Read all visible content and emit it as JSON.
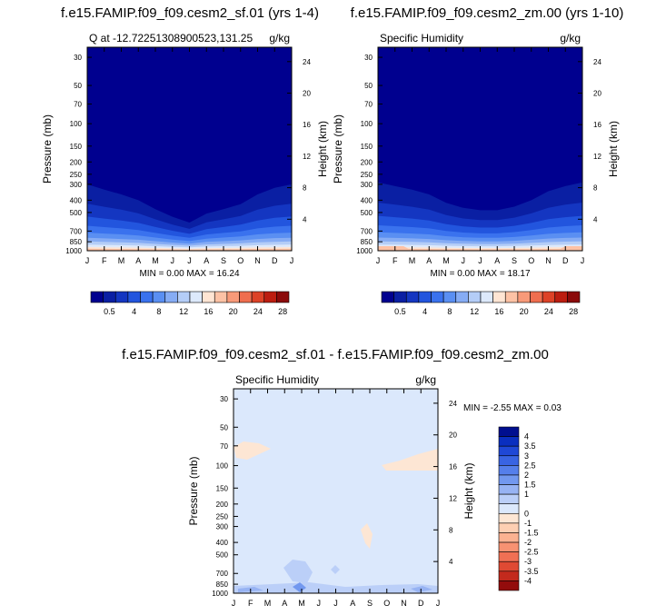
{
  "colors": {
    "abs_palette": [
      "#00008f",
      "#0a1fa3",
      "#1436c1",
      "#2255de",
      "#3a72ee",
      "#5a8ff2",
      "#86acf4",
      "#b4cdf7",
      "#dde9fb",
      "#ffe5d3",
      "#fdc2a5",
      "#f89a79",
      "#ef6e4f",
      "#dd4227",
      "#bc1d10",
      "#8b0a0a"
    ],
    "diff_palette": [
      "#000f8f",
      "#0a2fbf",
      "#1f48d6",
      "#3964e3",
      "#557feb",
      "#7298ef",
      "#97b3f3",
      "#bbcff8",
      "#dbe8fc",
      "#fde6d4",
      "#fdcfb3",
      "#fbb291",
      "#f79272",
      "#f07054",
      "#df4a33",
      "#c32a1d",
      "#930c0c"
    ]
  },
  "chart_data": [
    {
      "type": "contour",
      "title": "f.e15.FAMIP.f09_f09.cesm2_sf.01 (yrs 1-4)",
      "left_string": "Q at -12.72251308900523,131.25",
      "right_string": "g/kg",
      "xlabel": "",
      "ylabel": "Pressure (mb)",
      "ylabel_right": "Height (km)",
      "x_ticks": [
        "J",
        "F",
        "M",
        "A",
        "M",
        "J",
        "J",
        "A",
        "S",
        "O",
        "N",
        "D",
        "J"
      ],
      "y_ticks_mb": [
        30,
        50,
        70,
        100,
        150,
        200,
        250,
        300,
        400,
        500,
        700,
        850,
        1000
      ],
      "y_ticks_km": [
        24,
        20,
        16,
        12,
        8,
        4
      ],
      "ylim_mb": [
        1000,
        25
      ],
      "y_scale": "log",
      "min_max_text": "MIN =   0.00  MAX =  16.24",
      "min": 0.0,
      "max": 16.24,
      "boundary_0_5_mb": [
        300,
        330,
        360,
        400,
        470,
        540,
        600,
        510,
        470,
        430,
        360,
        320,
        300
      ]
    },
    {
      "type": "contour",
      "title": "f.e15.FAMIP.f09_f09.cesm2_zm.00 (yrs 1-10)",
      "left_string": "Specific Humidity",
      "right_string": "g/kg",
      "xlabel": "",
      "ylabel": "Pressure (mb)",
      "ylabel_right": "Height (km)",
      "x_ticks": [
        "J",
        "F",
        "M",
        "A",
        "M",
        "J",
        "J",
        "A",
        "S",
        "O",
        "N",
        "D",
        "J"
      ],
      "y_ticks_mb": [
        30,
        50,
        70,
        100,
        150,
        200,
        250,
        300,
        400,
        500,
        700,
        850,
        1000
      ],
      "y_ticks_km": [
        24,
        20,
        16,
        12,
        8,
        4
      ],
      "ylim_mb": [
        1000,
        25
      ],
      "y_scale": "log",
      "min_max_text": "MIN =   0.00  MAX =  18.17",
      "min": 0.0,
      "max": 18.17,
      "boundary_0_5_mb": [
        290,
        310,
        330,
        360,
        420,
        460,
        480,
        480,
        450,
        400,
        340,
        310,
        290
      ]
    },
    {
      "type": "contour",
      "title": "f.e15.FAMIP.f09_f09.cesm2_sf.01 - f.e15.FAMIP.f09_f09.cesm2_zm.00",
      "left_string": "Specific Humidity",
      "right_string": "g/kg",
      "xlabel": "",
      "ylabel": "Pressure (mb)",
      "ylabel_right": "Height (km)",
      "x_ticks": [
        "J",
        "F",
        "M",
        "A",
        "M",
        "J",
        "J",
        "A",
        "S",
        "O",
        "N",
        "D",
        "J"
      ],
      "y_ticks_mb": [
        30,
        50,
        70,
        100,
        150,
        200,
        250,
        300,
        400,
        500,
        700,
        850,
        1000
      ],
      "y_ticks_km": [
        24,
        20,
        16,
        12,
        8,
        4
      ],
      "ylim_mb": [
        1000,
        25
      ],
      "y_scale": "log",
      "min_max_text": "MIN =  -2.55  MAX =   0.03",
      "min": -2.55,
      "max": 0.03
    }
  ],
  "colorbars": {
    "abs_labels": [
      "0.5",
      "4",
      "8",
      "12",
      "16",
      "20",
      "24",
      "28"
    ],
    "diff_labels": [
      "4",
      "3.5",
      "3",
      "2.5",
      "2",
      "1.5",
      "1",
      "0",
      "-1",
      "-1.5",
      "-2",
      "-2.5",
      "-3",
      "-3.5",
      "-4"
    ]
  }
}
